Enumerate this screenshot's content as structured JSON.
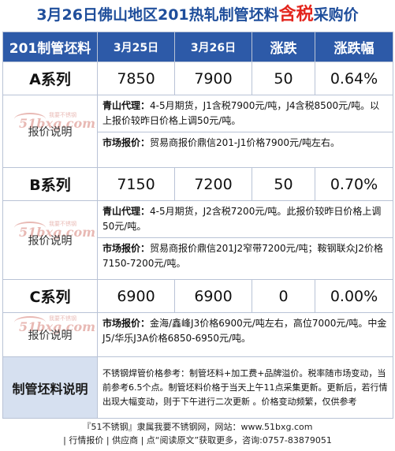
{
  "title": {
    "part1": "3月26日佛山地区201热轧制管坯料",
    "highlight": "含税",
    "part2": "采购价"
  },
  "header": {
    "product": "201制管坯料",
    "date1": "3月25日",
    "date2": "3月26日",
    "change": "涨跌",
    "change_pct": "涨跌幅"
  },
  "watermark": {
    "logo": "51bxg.com",
    "tagline": "我要不锈钢"
  },
  "rows": [
    {
      "series": "A系列",
      "price1": "7850",
      "price2": "7900",
      "change": "50",
      "pct": "0.64%",
      "label": "报价说明",
      "desc1_bold": "青山代理：",
      "desc1_text": "4-5月期货，J1含税7900元/吨，J4含税8500元/吨。以上报价较昨日价格上调50元/吨。",
      "desc2_bold": "市场报价：",
      "desc2_text": "贸易商报价鼎信201-J1价格7900元/吨左右。"
    },
    {
      "series": "B系列",
      "price1": "7150",
      "price2": "7200",
      "change": "50",
      "pct": "0.70%",
      "label": "报价说明",
      "desc1_bold": "青山代理：",
      "desc1_text": "4-5月期货，J2含税7200元/吨。此报价较昨日价格上调50元/吨。",
      "desc2_bold": "市场报价：",
      "desc2_text": "贸易商报价鼎信201J2窄带7200元/吨；鞍钢联众J2价格7150-7200元/吨。"
    },
    {
      "series": "C系列",
      "price1": "6900",
      "price2": "6900",
      "change": "0",
      "pct": "0.00%",
      "label": "报价说明",
      "desc1_bold": "市场报价：",
      "desc1_text": "金海/鑫峰J3价格6900元/吨左右，高位7000元/吨。中金J5/华乐J3A价格6850-6950元/吨。"
    }
  ],
  "notes": {
    "label": "制管坯料说明",
    "text": "不锈钢焊管价格参考：制管坯料+加工费+品牌溢价。税率随市场变动，当前参考6.5个点。制管坯料价格于当天上午11点采集更新。更新后，若行情出现大幅变动，则于下午进行二次更新 。价格变动频繁，仅供参考"
  },
  "footer": {
    "line1": "『51不锈钢』隶属我要不锈钢网，网站：www.51bxg.com",
    "line2": "| 行情报价 | 供应商 | 点“阅读原文”获取更多，咨询:0757-83879051"
  }
}
